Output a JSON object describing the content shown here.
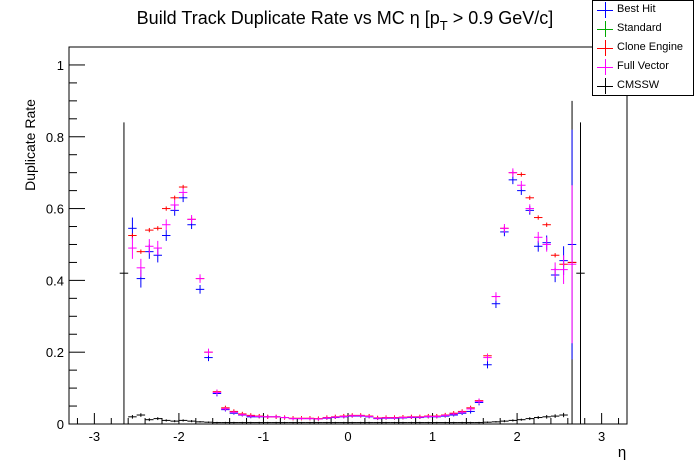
{
  "chart_data": {
    "type": "scatter",
    "title": "Build Track Duplicate Rate vs MC η [p",
    "title_sub": "T",
    "title_tail": " > 0.9 GeV/c]",
    "xlabel": "η",
    "ylabel": "Duplicate Rate",
    "xlim": [
      -3.3,
      3.3
    ],
    "ylim": [
      0,
      1.05
    ],
    "xticks": [
      -3,
      -2,
      -1,
      0,
      1,
      2,
      3
    ],
    "xtick_labels": [
      "-3",
      "-2",
      "-1",
      "0",
      "1",
      "2",
      "3"
    ],
    "yticks": [
      0,
      0.2,
      0.4,
      0.6,
      0.8,
      1
    ],
    "ytick_labels": [
      "0",
      "0.2",
      "0.4",
      "0.6",
      "0.8",
      "1"
    ],
    "bin_half_width": 0.05,
    "series": [
      {
        "name": "Best Hit",
        "color": "#0000ff",
        "x": [
          -2.55,
          -2.45,
          -2.35,
          -2.25,
          -2.15,
          -2.05,
          -1.95,
          -1.85,
          -1.75,
          -1.65,
          -1.55,
          -1.45,
          -1.35,
          -1.25,
          -1.15,
          -1.05,
          -0.95,
          -0.85,
          -0.75,
          -0.65,
          -0.55,
          -0.45,
          -0.35,
          -0.25,
          -0.15,
          -0.05,
          0.05,
          0.15,
          0.25,
          0.35,
          0.45,
          0.55,
          0.65,
          0.75,
          0.85,
          0.95,
          1.05,
          1.15,
          1.25,
          1.35,
          1.45,
          1.55,
          1.65,
          1.75,
          1.85,
          1.95,
          2.05,
          2.15,
          2.25,
          2.35,
          2.45,
          2.55,
          2.65
        ],
        "y": [
          0.545,
          0.405,
          0.48,
          0.47,
          0.525,
          0.595,
          0.63,
          0.555,
          0.375,
          0.185,
          0.085,
          0.04,
          0.03,
          0.025,
          0.02,
          0.02,
          0.02,
          0.02,
          0.018,
          0.015,
          0.015,
          0.015,
          0.014,
          0.016,
          0.018,
          0.02,
          0.022,
          0.022,
          0.02,
          0.015,
          0.016,
          0.016,
          0.017,
          0.018,
          0.018,
          0.02,
          0.02,
          0.022,
          0.025,
          0.03,
          0.035,
          0.06,
          0.165,
          0.335,
          0.535,
          0.68,
          0.65,
          0.595,
          0.495,
          0.505,
          0.415,
          0.455,
          0.5
        ],
        "err": [
          0.03,
          0.025,
          0.02,
          0.02,
          0.015,
          0.015,
          0.012,
          0.012,
          0.012,
          0.01,
          0.008,
          0.005,
          0.004,
          0.004,
          0.004,
          0.004,
          0.004,
          0.004,
          0.004,
          0.004,
          0.004,
          0.004,
          0.004,
          0.004,
          0.004,
          0.004,
          0.004,
          0.004,
          0.004,
          0.004,
          0.004,
          0.004,
          0.004,
          0.004,
          0.004,
          0.004,
          0.004,
          0.004,
          0.004,
          0.005,
          0.006,
          0.008,
          0.01,
          0.012,
          0.012,
          0.012,
          0.012,
          0.012,
          0.015,
          0.02,
          0.02,
          0.04,
          0.32
        ]
      },
      {
        "name": "Standard",
        "color": "#00aa00",
        "x": [],
        "y": [],
        "err": []
      },
      {
        "name": "Clone Engine",
        "color": "#ff0000",
        "x": [
          -2.55,
          -2.45,
          -2.35,
          -2.25,
          -2.15,
          -2.05,
          -1.95,
          -1.85,
          -1.75,
          -1.65,
          -1.55,
          -1.45,
          -1.35,
          -1.25,
          -1.15,
          -1.05,
          -0.95,
          -0.85,
          -0.75,
          -0.65,
          -0.55,
          -0.45,
          -0.35,
          -0.25,
          -0.15,
          -0.05,
          0.05,
          0.15,
          0.25,
          0.35,
          0.45,
          0.55,
          0.65,
          0.75,
          0.85,
          0.95,
          1.05,
          1.15,
          1.25,
          1.35,
          1.45,
          1.55,
          1.65,
          1.75,
          1.85,
          1.95,
          2.05,
          2.15,
          2.25,
          2.35,
          2.45,
          2.55,
          2.65
        ],
        "y": [
          0.525,
          0.48,
          0.54,
          0.545,
          0.6,
          0.63,
          0.66,
          0.57,
          0.405,
          0.2,
          0.09,
          0.045,
          0.035,
          0.028,
          0.024,
          0.022,
          0.02,
          0.02,
          0.018,
          0.016,
          0.016,
          0.016,
          0.015,
          0.018,
          0.02,
          0.022,
          0.024,
          0.024,
          0.022,
          0.017,
          0.018,
          0.018,
          0.019,
          0.02,
          0.02,
          0.022,
          0.022,
          0.025,
          0.03,
          0.035,
          0.045,
          0.065,
          0.19,
          0.355,
          0.545,
          0.7,
          0.695,
          0.63,
          0.575,
          0.555,
          0.47,
          0.445,
          0.45
        ]
      },
      {
        "name": "Full Vector",
        "color": "#ff00ff",
        "x": [
          -2.55,
          -2.45,
          -2.35,
          -2.25,
          -2.15,
          -2.05,
          -1.95,
          -1.85,
          -1.75,
          -1.65,
          -1.55,
          -1.45,
          -1.35,
          -1.25,
          -1.15,
          -1.05,
          -0.95,
          -0.85,
          -0.75,
          -0.65,
          -0.55,
          -0.45,
          -0.35,
          -0.25,
          -0.15,
          -0.05,
          0.05,
          0.15,
          0.25,
          0.35,
          0.45,
          0.55,
          0.65,
          0.75,
          0.85,
          0.95,
          1.05,
          1.15,
          1.25,
          1.35,
          1.45,
          1.55,
          1.65,
          1.75,
          1.85,
          1.95,
          2.05,
          2.15,
          2.25,
          2.35,
          2.45,
          2.55,
          2.65
        ],
        "y": [
          0.49,
          0.435,
          0.495,
          0.49,
          0.555,
          0.61,
          0.645,
          0.57,
          0.405,
          0.2,
          0.088,
          0.042,
          0.033,
          0.026,
          0.022,
          0.021,
          0.02,
          0.02,
          0.018,
          0.015,
          0.015,
          0.015,
          0.014,
          0.017,
          0.019,
          0.021,
          0.023,
          0.023,
          0.021,
          0.016,
          0.017,
          0.017,
          0.018,
          0.019,
          0.019,
          0.021,
          0.021,
          0.024,
          0.028,
          0.033,
          0.042,
          0.063,
          0.185,
          0.355,
          0.545,
          0.7,
          0.665,
          0.6,
          0.52,
          0.5,
          0.43,
          0.43,
          0.445
        ],
        "err": [
          0.03,
          0.025,
          0.02,
          0.02,
          0.015,
          0.015,
          0.012,
          0.012,
          0.012,
          0.01,
          0.008,
          0.005,
          0.004,
          0.004,
          0.004,
          0.004,
          0.004,
          0.004,
          0.004,
          0.004,
          0.004,
          0.004,
          0.004,
          0.004,
          0.004,
          0.004,
          0.004,
          0.004,
          0.004,
          0.004,
          0.004,
          0.004,
          0.004,
          0.004,
          0.004,
          0.004,
          0.004,
          0.004,
          0.004,
          0.005,
          0.006,
          0.008,
          0.01,
          0.012,
          0.012,
          0.012,
          0.012,
          0.012,
          0.015,
          0.02,
          0.02,
          0.04,
          0.22
        ]
      },
      {
        "name": "CMSSW",
        "color": "#000000",
        "x": [
          -2.65,
          -2.55,
          -2.45,
          -2.35,
          -2.25,
          -2.15,
          -2.05,
          -1.95,
          -1.85,
          -1.75,
          -1.65,
          -1.55,
          -1.45,
          -1.35,
          -1.25,
          -1.15,
          -1.05,
          -0.95,
          -0.85,
          -0.75,
          -0.65,
          -0.55,
          -0.45,
          -0.35,
          -0.25,
          -0.15,
          -0.05,
          0.05,
          0.15,
          0.25,
          0.35,
          0.45,
          0.55,
          0.65,
          0.75,
          0.85,
          0.95,
          1.05,
          1.15,
          1.25,
          1.35,
          1.45,
          1.55,
          1.65,
          1.75,
          1.85,
          1.95,
          2.05,
          2.15,
          2.25,
          2.35,
          2.45,
          2.55,
          2.65,
          2.75
        ],
        "y": [
          0.42,
          0.02,
          0.025,
          0.012,
          0.015,
          0.01,
          0.008,
          0.01,
          0.008,
          0.006,
          0.005,
          0.004,
          0.004,
          0.004,
          0.004,
          0.004,
          0.004,
          0.004,
          0.004,
          0.004,
          0.004,
          0.004,
          0.004,
          0.004,
          0.004,
          0.004,
          0.004,
          0.004,
          0.004,
          0.004,
          0.004,
          0.004,
          0.004,
          0.004,
          0.004,
          0.004,
          0.004,
          0.004,
          0.004,
          0.004,
          0.004,
          0.004,
          0.004,
          0.005,
          0.006,
          0.008,
          0.01,
          0.012,
          0.015,
          0.018,
          0.02,
          0.022,
          0.025,
          0.45,
          0.42
        ],
        "err": [
          0.42,
          0.005,
          0.005,
          0.004,
          0.004,
          0.003,
          0.003,
          0.003,
          0.003,
          0.002,
          0.002,
          0.002,
          0.002,
          0.002,
          0.002,
          0.002,
          0.002,
          0.002,
          0.002,
          0.002,
          0.002,
          0.002,
          0.002,
          0.002,
          0.002,
          0.002,
          0.002,
          0.002,
          0.002,
          0.002,
          0.002,
          0.002,
          0.002,
          0.002,
          0.002,
          0.002,
          0.002,
          0.002,
          0.002,
          0.002,
          0.002,
          0.002,
          0.002,
          0.002,
          0.002,
          0.003,
          0.003,
          0.003,
          0.004,
          0.004,
          0.005,
          0.005,
          0.006,
          0.45,
          0.42
        ]
      }
    ],
    "legend_position": "top-right"
  }
}
